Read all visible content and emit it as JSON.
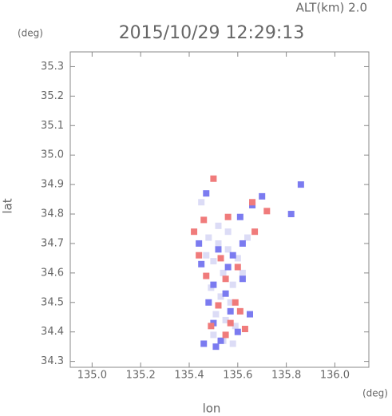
{
  "chart_data": {
    "type": "scatter",
    "title": "2015/10/29 12:29:13",
    "annotation": "ALT(km) 2.0",
    "y_unit": "(deg)",
    "x_unit": "(deg)",
    "xlabel": "lon",
    "ylabel": "lat",
    "xlim": [
      134.91,
      136.14
    ],
    "ylim": [
      34.28,
      35.35
    ],
    "xticks": [
      {
        "value": 135,
        "label": "135.0"
      },
      135.2,
      135.4,
      135.6,
      135.8,
      {
        "value": 136,
        "label": "136.0"
      }
    ],
    "yticks": [
      34.3,
      34.4,
      34.5,
      34.6,
      34.7,
      34.8,
      34.9,
      {
        "value": 35,
        "label": "35.0"
      },
      35.1,
      35.2,
      35.3
    ],
    "series": [
      {
        "color": "#dcdcf6",
        "x": [
          135.48,
          135.52,
          135.56,
          135.5,
          135.54,
          135.58,
          135.49,
          135.53,
          135.57,
          135.51,
          135.55,
          135.59,
          135.5,
          135.54,
          135.58,
          135.52,
          135.56,
          135.6,
          135.62,
          135.47,
          135.64,
          135.45
        ],
        "y": [
          34.72,
          34.7,
          34.68,
          34.64,
          34.6,
          34.56,
          34.55,
          34.52,
          34.5,
          34.46,
          34.44,
          34.42,
          34.39,
          34.37,
          34.36,
          34.76,
          34.74,
          34.65,
          34.6,
          34.66,
          34.72,
          34.84
        ]
      },
      {
        "color": "#7b7bf0",
        "x": [
          135.47,
          135.61,
          135.82,
          135.86,
          135.52,
          135.58,
          135.45,
          135.56,
          135.5,
          135.62,
          135.48,
          135.57,
          135.65,
          135.5,
          135.6,
          135.53,
          135.46,
          135.51,
          135.7,
          135.66,
          135.55,
          135.44,
          135.62
        ],
        "y": [
          34.87,
          34.79,
          34.8,
          34.9,
          34.68,
          34.66,
          34.63,
          34.62,
          34.56,
          34.58,
          34.5,
          34.47,
          34.46,
          34.43,
          34.4,
          34.37,
          34.36,
          34.35,
          34.86,
          34.83,
          34.53,
          34.7,
          34.7
        ]
      },
      {
        "color": "#f07b7b",
        "x": [
          135.5,
          135.66,
          135.72,
          135.46,
          135.56,
          135.44,
          135.53,
          135.6,
          135.47,
          135.55,
          135.59,
          135.52,
          135.61,
          135.57,
          135.49,
          135.63,
          135.55,
          135.42,
          135.67
        ],
        "y": [
          34.92,
          34.84,
          34.81,
          34.78,
          34.79,
          34.66,
          34.65,
          34.62,
          34.59,
          34.58,
          34.5,
          34.49,
          34.47,
          34.43,
          34.42,
          34.41,
          34.39,
          34.74,
          34.74
        ]
      }
    ]
  }
}
